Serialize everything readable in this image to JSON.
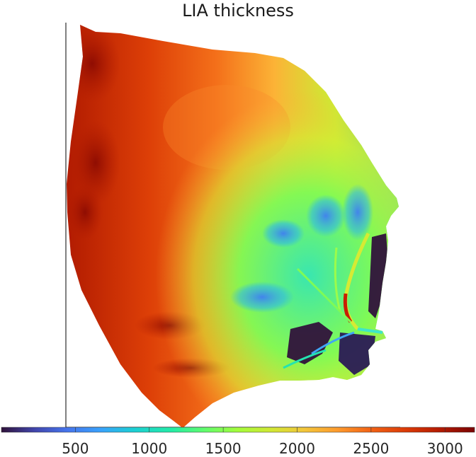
{
  "title": "LIA thickness",
  "colorbar": {
    "colormap": "turbo",
    "min": 0,
    "max": 3200,
    "ticks": [
      {
        "value": 500,
        "label": "500"
      },
      {
        "value": 1000,
        "label": "1000"
      },
      {
        "value": 1500,
        "label": "1500"
      },
      {
        "value": 2000,
        "label": "2000"
      },
      {
        "value": 2500,
        "label": "2500"
      },
      {
        "value": 3000,
        "label": "3000"
      }
    ],
    "placement": "bottom"
  },
  "colors": {
    "deep_red": "#7a0403",
    "red_orange": "#d23105",
    "orange": "#f66b19",
    "yellow_orange": "#fcb836",
    "green": "#a4fc3c",
    "cyan": "#1ae4b6",
    "blue": "#4686fb",
    "dark_indigo": "#30123b",
    "axis": "#000000"
  }
}
